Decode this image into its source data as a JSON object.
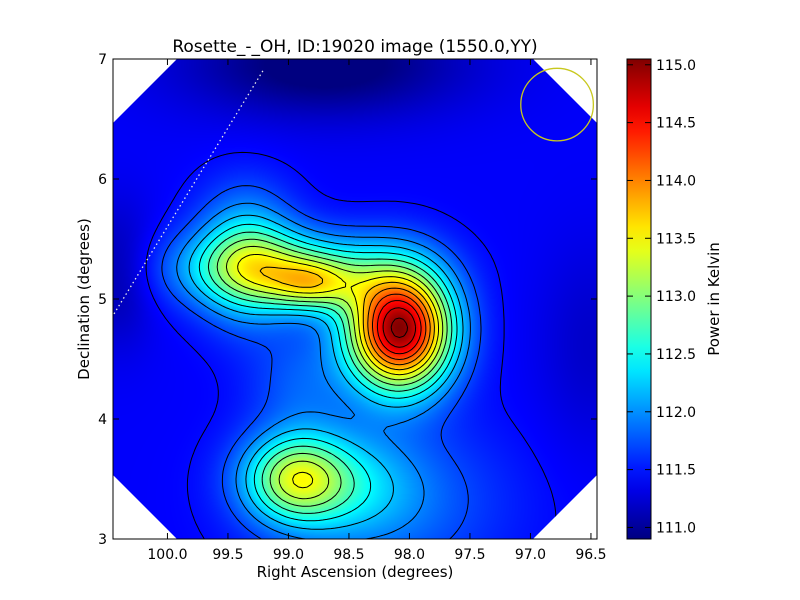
{
  "chart_data": {
    "type": "heatmap",
    "title": "Rosette_-_OH, ID:19020 image (1550.0,YY)",
    "xlabel": "Right Ascension (degrees)",
    "ylabel": "Declination (degrees)",
    "xlim": [
      100.45,
      96.45
    ],
    "ylim": [
      3,
      7
    ],
    "x_ticks": [
      {
        "value": 100.0,
        "label": "100.0"
      },
      {
        "value": 99.5,
        "label": "99.5"
      },
      {
        "value": 99.0,
        "label": "99.0"
      },
      {
        "value": 98.5,
        "label": "98.5"
      },
      {
        "value": 98.0,
        "label": "98.0"
      },
      {
        "value": 97.5,
        "label": "97.5"
      },
      {
        "value": 97.0,
        "label": "97.0"
      },
      {
        "value": 96.5,
        "label": "96.5"
      }
    ],
    "y_ticks": [
      {
        "value": 3,
        "label": "3"
      },
      {
        "value": 4,
        "label": "4"
      },
      {
        "value": 5,
        "label": "5"
      },
      {
        "value": 6,
        "label": "6"
      },
      {
        "value": 7,
        "label": "7"
      }
    ],
    "colorbar": {
      "label": "Power in Kelvin",
      "range": [
        110.9,
        115.05
      ],
      "colormap": "jet",
      "ticks": [
        {
          "value": 111.0,
          "label": "111.0"
        },
        {
          "value": 111.5,
          "label": "111.5"
        },
        {
          "value": 112.0,
          "label": "112.0"
        },
        {
          "value": 112.5,
          "label": "112.5"
        },
        {
          "value": 113.0,
          "label": "113.0"
        },
        {
          "value": 113.5,
          "label": "113.5"
        },
        {
          "value": 114.0,
          "label": "114.0"
        },
        {
          "value": 114.5,
          "label": "114.5"
        },
        {
          "value": 115.0,
          "label": "115.0"
        }
      ]
    },
    "background_level": 111.4,
    "peaks": [
      {
        "ra": 98.08,
        "dec": 4.75,
        "amplitude": 3.6,
        "sigma_ra": 0.3,
        "sigma_dec": 0.35
      },
      {
        "ra": 99.05,
        "dec": 5.25,
        "amplitude": 1.3,
        "sigma_ra": 0.6,
        "sigma_dec": 0.22
      },
      {
        "ra": 99.35,
        "dec": 5.35,
        "amplitude": 1.0,
        "sigma_ra": 0.28,
        "sigma_dec": 0.38
      },
      {
        "ra": 98.8,
        "dec": 5.12,
        "amplitude": 1.1,
        "sigma_ra": 0.25,
        "sigma_dec": 0.15
      },
      {
        "ra": 98.95,
        "dec": 3.5,
        "amplitude": 1.55,
        "sigma_ra": 0.3,
        "sigma_dec": 0.25
      },
      {
        "ra": 98.5,
        "dec": 3.45,
        "amplitude": 0.5,
        "sigma_ra": 0.4,
        "sigma_dec": 0.3
      },
      {
        "ra": 98.2,
        "dec": 3.3,
        "amplitude": 0.45,
        "sigma_ra": 0.7,
        "sigma_dec": 0.5
      },
      {
        "ra": 98.9,
        "dec": 4.3,
        "amplitude": 0.35,
        "sigma_ra": 0.3,
        "sigma_dec": 0.35
      },
      {
        "ra": 98.7,
        "dec": 6.95,
        "amplitude": -0.6,
        "sigma_ra": 0.8,
        "sigma_dec": 0.3
      },
      {
        "ra": 100.4,
        "dec": 5.2,
        "amplitude": -0.35,
        "sigma_ra": 0.2,
        "sigma_dec": 0.4
      },
      {
        "ra": 96.5,
        "dec": 4.6,
        "amplitude": -0.2,
        "sigma_ra": 0.3,
        "sigma_dec": 0.6
      }
    ],
    "contour_levels": [
      111.45,
      111.7,
      111.95,
      112.2,
      112.45,
      112.7,
      112.95,
      113.2,
      113.45,
      113.7,
      113.95,
      114.2,
      114.45,
      114.7,
      114.95
    ],
    "beam_circle": {
      "ra": 96.78,
      "dec": 6.62,
      "radius_deg": 0.3,
      "color": "#c8c81e"
    },
    "dotted_line": {
      "from": {
        "ra": 100.5,
        "dec": 4.78
      },
      "to": {
        "ra": 99.2,
        "dec": 6.92
      },
      "color": "#e8e8e8"
    },
    "grid": false,
    "legend": "none"
  }
}
